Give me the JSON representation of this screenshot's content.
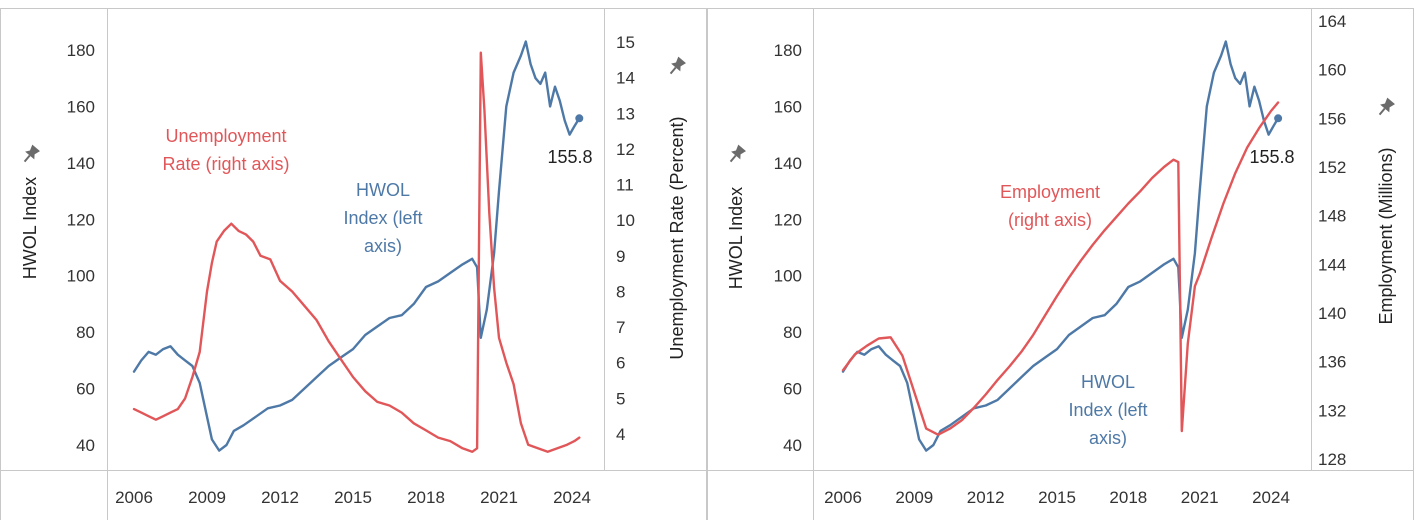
{
  "colors": {
    "hwol": "#4e79a7",
    "red": "#e15759",
    "grid": "#d9d9d9",
    "text": "#333333"
  },
  "chart_data": [
    {
      "type": "line",
      "x_ticks": [
        "2006",
        "2009",
        "2012",
        "2015",
        "2018",
        "2021",
        "2024"
      ],
      "xlim": [
        2005.8,
        2025.0
      ],
      "left_axis": {
        "label": "HWOL Index",
        "ylim": [
          34,
          192
        ],
        "ticks": [
          40,
          60,
          80,
          100,
          120,
          140,
          160,
          180
        ]
      },
      "right_axis": {
        "label": "Unemployment Rate (Percent)",
        "ylim": [
          3.2,
          15.6
        ],
        "ticks": [
          4,
          5,
          6,
          7,
          8,
          9,
          10,
          11,
          12,
          13,
          14,
          15
        ]
      },
      "annotations": {
        "right_series": "Unemployment Rate (right axis)",
        "left_series": "HWOL Index (left axis)",
        "end_value": "155.8"
      },
      "series": [
        {
          "axis": "left",
          "x": [
            2006.0,
            2006.3,
            2006.6,
            2006.9,
            2007.2,
            2007.5,
            2007.8,
            2008.1,
            2008.4,
            2008.7,
            2009.0,
            2009.2,
            2009.5,
            2009.8,
            2010.1,
            2010.5,
            2011.0,
            2011.5,
            2012.0,
            2012.5,
            2013.0,
            2013.5,
            2014.0,
            2014.5,
            2015.0,
            2015.5,
            2016.0,
            2016.5,
            2017.0,
            2017.5,
            2018.0,
            2018.5,
            2019.0,
            2019.5,
            2019.9,
            2020.1,
            2020.25,
            2020.5,
            2020.8,
            2021.0,
            2021.3,
            2021.6,
            2021.9,
            2022.1,
            2022.3,
            2022.5,
            2022.7,
            2022.9,
            2023.1,
            2023.3,
            2023.5,
            2023.7,
            2023.9,
            2024.1,
            2024.3
          ],
          "values": [
            66,
            70,
            73,
            72,
            74,
            75,
            72,
            70,
            68,
            62,
            50,
            42,
            38,
            40,
            45,
            47,
            50,
            53,
            54,
            56,
            60,
            64,
            68,
            71,
            74,
            79,
            82,
            85,
            86,
            90,
            96,
            98,
            101,
            104,
            106,
            103,
            78,
            88,
            108,
            130,
            160,
            172,
            178,
            183,
            175,
            170,
            168,
            172,
            160,
            167,
            162,
            155,
            150,
            153,
            155.8
          ]
        },
        {
          "axis": "right",
          "x": [
            2006.0,
            2006.3,
            2006.6,
            2006.9,
            2007.2,
            2007.5,
            2007.8,
            2008.1,
            2008.4,
            2008.7,
            2009.0,
            2009.2,
            2009.4,
            2009.7,
            2010.0,
            2010.3,
            2010.6,
            2010.9,
            2011.2,
            2011.6,
            2012.0,
            2012.5,
            2013.0,
            2013.5,
            2014.0,
            2014.5,
            2015.0,
            2015.5,
            2016.0,
            2016.5,
            2017.0,
            2017.5,
            2018.0,
            2018.5,
            2019.0,
            2019.5,
            2019.9,
            2020.1,
            2020.25,
            2020.4,
            2020.6,
            2020.8,
            2021.0,
            2021.3,
            2021.6,
            2021.9,
            2022.2,
            2022.6,
            2023.0,
            2023.4,
            2023.8,
            2024.1,
            2024.3
          ],
          "values": [
            4.7,
            4.6,
            4.5,
            4.4,
            4.5,
            4.6,
            4.7,
            5.0,
            5.6,
            6.3,
            8.0,
            8.8,
            9.4,
            9.7,
            9.9,
            9.7,
            9.6,
            9.4,
            9.0,
            8.9,
            8.3,
            8.0,
            7.6,
            7.2,
            6.6,
            6.1,
            5.6,
            5.2,
            4.9,
            4.8,
            4.6,
            4.3,
            4.1,
            3.9,
            3.8,
            3.6,
            3.5,
            3.6,
            14.7,
            13.1,
            10.2,
            8.1,
            6.7,
            6.0,
            5.4,
            4.3,
            3.7,
            3.6,
            3.5,
            3.6,
            3.7,
            3.8,
            3.9
          ]
        }
      ]
    },
    {
      "type": "line",
      "x_ticks": [
        "2006",
        "2009",
        "2012",
        "2015",
        "2018",
        "2021",
        "2024"
      ],
      "xlim": [
        2005.8,
        2025.0
      ],
      "left_axis": {
        "label": "HWOL Index",
        "ylim": [
          34,
          192
        ],
        "ticks": [
          40,
          60,
          80,
          100,
          120,
          140,
          160,
          180
        ]
      },
      "right_axis": {
        "label": "Employment (Millions)",
        "ylim": [
          127,
          164
        ],
        "ticks": [
          128,
          132,
          136,
          140,
          144,
          148,
          152,
          156,
          160,
          164
        ]
      },
      "annotations": {
        "right_series": "Employment (right axis)",
        "left_series": "HWOL Index (left axis)",
        "end_value": "155.8"
      },
      "series": [
        {
          "axis": "left",
          "x": [
            2006.0,
            2006.3,
            2006.6,
            2006.9,
            2007.2,
            2007.5,
            2007.8,
            2008.1,
            2008.4,
            2008.7,
            2009.0,
            2009.2,
            2009.5,
            2009.8,
            2010.1,
            2010.5,
            2011.0,
            2011.5,
            2012.0,
            2012.5,
            2013.0,
            2013.5,
            2014.0,
            2014.5,
            2015.0,
            2015.5,
            2016.0,
            2016.5,
            2017.0,
            2017.5,
            2018.0,
            2018.5,
            2019.0,
            2019.5,
            2019.9,
            2020.1,
            2020.25,
            2020.5,
            2020.8,
            2021.0,
            2021.3,
            2021.6,
            2021.9,
            2022.1,
            2022.3,
            2022.5,
            2022.7,
            2022.9,
            2023.1,
            2023.3,
            2023.5,
            2023.7,
            2023.9,
            2024.1,
            2024.3
          ],
          "values": [
            66,
            70,
            73,
            72,
            74,
            75,
            72,
            70,
            68,
            62,
            50,
            42,
            38,
            40,
            45,
            47,
            50,
            53,
            54,
            56,
            60,
            64,
            68,
            71,
            74,
            79,
            82,
            85,
            86,
            90,
            96,
            98,
            101,
            104,
            106,
            103,
            78,
            88,
            108,
            130,
            160,
            172,
            178,
            183,
            175,
            170,
            168,
            172,
            160,
            167,
            162,
            155,
            150,
            153,
            155.8
          ]
        },
        {
          "axis": "right",
          "x": [
            2006.0,
            2006.5,
            2007.0,
            2007.5,
            2008.0,
            2008.5,
            2009.0,
            2009.5,
            2010.0,
            2010.5,
            2011.0,
            2011.5,
            2012.0,
            2012.5,
            2013.0,
            2013.5,
            2014.0,
            2014.5,
            2015.0,
            2015.5,
            2016.0,
            2016.5,
            2017.0,
            2017.5,
            2018.0,
            2018.5,
            2019.0,
            2019.5,
            2019.9,
            2020.1,
            2020.25,
            2020.5,
            2020.8,
            2021.0,
            2021.5,
            2022.0,
            2022.5,
            2023.0,
            2023.5,
            2024.0,
            2024.3
          ],
          "values": [
            135.3,
            136.6,
            137.3,
            137.9,
            138.0,
            136.5,
            133.5,
            130.5,
            130.0,
            130.5,
            131.2,
            132.2,
            133.3,
            134.5,
            135.6,
            136.8,
            138.2,
            139.8,
            141.4,
            142.9,
            144.3,
            145.6,
            146.8,
            147.9,
            149.0,
            150.0,
            151.1,
            152.0,
            152.6,
            152.4,
            130.3,
            137.5,
            142.2,
            143.2,
            146.2,
            149.0,
            151.5,
            153.6,
            155.2,
            156.6,
            157.3
          ]
        }
      ]
    }
  ]
}
